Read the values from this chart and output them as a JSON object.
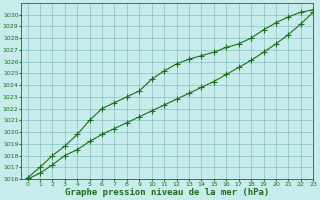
{
  "title": "Graphe pression niveau de la mer (hPa)",
  "bg_color": "#c8ecec",
  "plot_bg_color": "#c8ecec",
  "line_color": "#1a6e1a",
  "grid_color": "#7ab5b5",
  "xlabel_color": "#1a6e1a",
  "x": [
    0,
    1,
    2,
    3,
    4,
    5,
    6,
    7,
    8,
    9,
    10,
    11,
    12,
    13,
    14,
    15,
    16,
    17,
    18,
    19,
    20,
    21,
    22,
    23
  ],
  "line1": [
    1016.0,
    1016.5,
    1017.2,
    1018.0,
    1018.5,
    1019.2,
    1019.8,
    1020.3,
    1020.8,
    1021.3,
    1021.8,
    1022.3,
    1022.8,
    1023.3,
    1023.8,
    1024.3,
    1024.9,
    1025.5,
    1026.1,
    1026.8,
    1027.5,
    1028.3,
    1029.2,
    1030.2
  ],
  "line2": [
    1016.1,
    1017.0,
    1018.0,
    1018.8,
    1019.8,
    1021.0,
    1022.0,
    1022.5,
    1023.0,
    1023.5,
    1024.5,
    1025.2,
    1025.8,
    1026.2,
    1026.5,
    1026.8,
    1027.2,
    1027.5,
    1028.0,
    1028.7,
    1029.3,
    1029.8,
    1030.2,
    1030.4
  ],
  "ylim": [
    1016,
    1031
  ],
  "xlim": [
    -0.5,
    23
  ],
  "yticks": [
    1016,
    1017,
    1018,
    1019,
    1020,
    1021,
    1022,
    1023,
    1024,
    1025,
    1026,
    1027,
    1028,
    1029,
    1030
  ],
  "xticks": [
    0,
    1,
    2,
    3,
    4,
    5,
    6,
    7,
    8,
    9,
    10,
    11,
    12,
    13,
    14,
    15,
    16,
    17,
    18,
    19,
    20,
    21,
    22,
    23
  ],
  "marker": "+",
  "marker_size": 4,
  "line_width": 0.8,
  "title_fontsize": 6.5,
  "tick_fontsize": 4.5
}
